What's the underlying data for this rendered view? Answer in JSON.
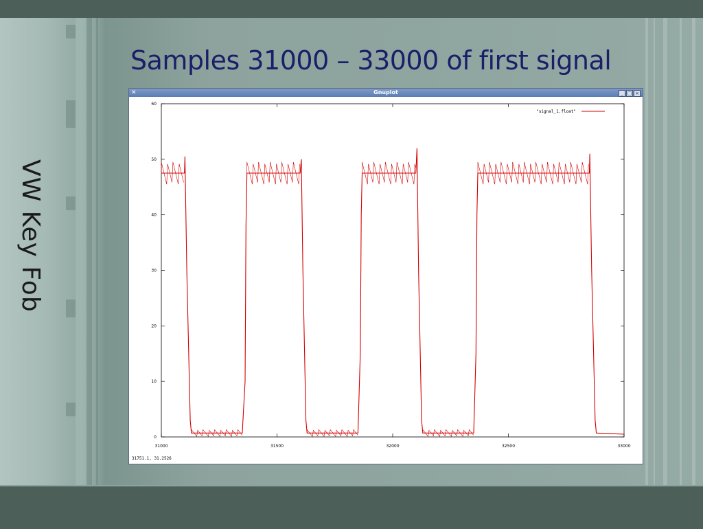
{
  "slide": {
    "title": "Samples 31000 – 33000 of first signal",
    "side_title": "VW Key Fob"
  },
  "window": {
    "title": "Gnuplot",
    "app_icon": "x-icon",
    "buttons": {
      "minimize": "_",
      "maximize": "□",
      "close": "×"
    },
    "status": "31751.1,  31.2526"
  },
  "colors": {
    "signal": "#d40000",
    "title_text": "#1b1f6a"
  },
  "chart_data": {
    "type": "line",
    "title": "",
    "xlabel": "",
    "ylabel": "",
    "xlim": [
      31000,
      33000
    ],
    "ylim": [
      0,
      60
    ],
    "xticks": [
      31000,
      31500,
      32000,
      32500,
      33000
    ],
    "yticks": [
      0,
      10,
      20,
      30,
      40,
      50,
      60
    ],
    "legend_position": "top-right",
    "grid": false,
    "series": [
      {
        "name": "\"signal_1.float\"",
        "x": [
          31000,
          31100,
          31102,
          31110,
          31125,
          31130,
          31350,
          31362,
          31366,
          31370,
          31600,
          31605,
          31612,
          31625,
          31630,
          31850,
          31860,
          31864,
          31868,
          32100,
          32105,
          32112,
          32125,
          32130,
          32350,
          32360,
          32364,
          32368,
          32850,
          32852,
          32860,
          32875,
          32880,
          33000
        ],
        "y": [
          47.5,
          47.5,
          50.5,
          30,
          3,
          0.7,
          0.7,
          10,
          38,
          47.5,
          47.5,
          50,
          30,
          3,
          0.7,
          0.7,
          15,
          40,
          47.5,
          47.5,
          52,
          30,
          3,
          0.7,
          0.7,
          15,
          40,
          47.5,
          47.5,
          51,
          30,
          3,
          0.7,
          0.5
        ]
      }
    ]
  }
}
